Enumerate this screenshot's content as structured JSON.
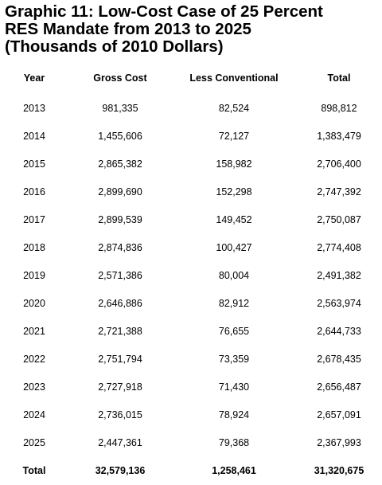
{
  "chart_data": {
    "type": "table",
    "title_lines": [
      "Graphic 11: Low-Cost Case of 25 Percent",
      "RES Mandate from 2013 to 2025",
      "(Thousands of 2010 Dollars)"
    ],
    "columns": [
      "Year",
      "Gross Cost",
      "Less Conventional",
      "Total"
    ],
    "rows": [
      [
        "2013",
        "981,335",
        "82,524",
        "898,812"
      ],
      [
        "2014",
        "1,455,606",
        "72,127",
        "1,383,479"
      ],
      [
        "2015",
        "2,865,382",
        "158,982",
        "2,706,400"
      ],
      [
        "2016",
        "2,899,690",
        "152,298",
        "2,747,392"
      ],
      [
        "2017",
        "2,899,539",
        "149,452",
        "2,750,087"
      ],
      [
        "2018",
        "2,874,836",
        "100,427",
        "2,774,408"
      ],
      [
        "2019",
        "2,571,386",
        "80,004",
        "2,491,382"
      ],
      [
        "2020",
        "2,646,886",
        "82,912",
        "2,563,974"
      ],
      [
        "2021",
        "2,721,388",
        "76,655",
        "2,644,733"
      ],
      [
        "2022",
        "2,751,794",
        "73,359",
        "2,678,435"
      ],
      [
        "2023",
        "2,727,918",
        "71,430",
        "2,656,487"
      ],
      [
        "2024",
        "2,736,015",
        "78,924",
        "2,657,091"
      ],
      [
        "2025",
        "2,447,361",
        "79,368",
        "2,367,993"
      ]
    ],
    "total_row": [
      "Total",
      "32,579,136",
      "1,258,461",
      "31,320,675"
    ]
  }
}
